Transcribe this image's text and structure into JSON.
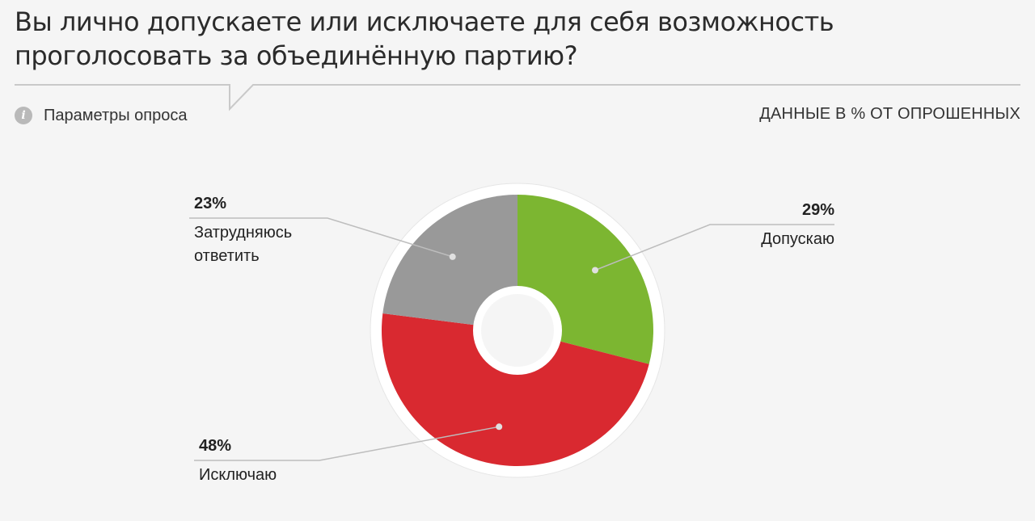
{
  "title": "Вы лично допускаете или исключаете для себя возможность проголосовать за объединённую партию?",
  "params_label": "Параметры опроса",
  "units_label": "ДАННЫЕ В % ОТ ОПРОШЕННЫХ",
  "chart_data": {
    "type": "pie",
    "donut": true,
    "slices": [
      {
        "label": "Допускаю",
        "value": 29,
        "value_label": "29%",
        "color": "#7cb631"
      },
      {
        "label": "Исключаю",
        "value": 48,
        "value_label": "48%",
        "color": "#d92930"
      },
      {
        "label": "Затрудняюсь ответить",
        "value": 23,
        "value_label": "23%",
        "color": "#999999"
      }
    ]
  }
}
